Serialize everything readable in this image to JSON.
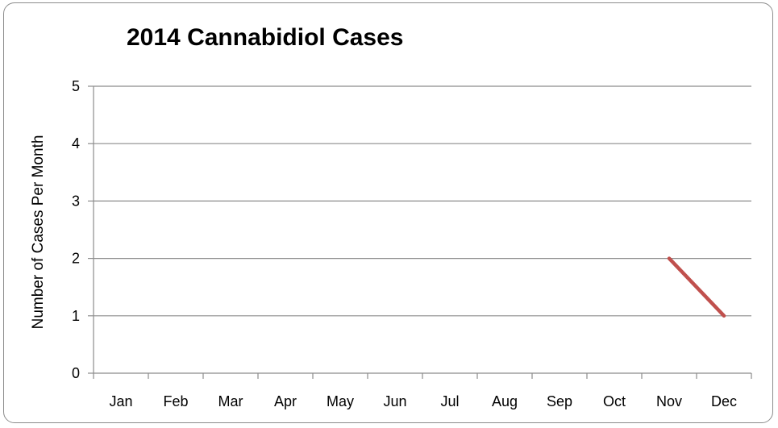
{
  "chart_data": {
    "type": "line",
    "title": "2014 Cannabidiol Cases",
    "xlabel": "",
    "ylabel": "Number of Cases Per Month",
    "categories": [
      "Jan",
      "Feb",
      "Mar",
      "Apr",
      "May",
      "Jun",
      "Jul",
      "Aug",
      "Sep",
      "Oct",
      "Nov",
      "Dec"
    ],
    "series": [
      {
        "values": [
          null,
          null,
          null,
          null,
          null,
          null,
          null,
          null,
          null,
          null,
          2,
          1
        ],
        "color": "#c0504d"
      }
    ],
    "ylim": [
      0,
      5
    ],
    "yticks": [
      0,
      1,
      2,
      3,
      4,
      5
    ],
    "grid": true,
    "legend": "none"
  }
}
